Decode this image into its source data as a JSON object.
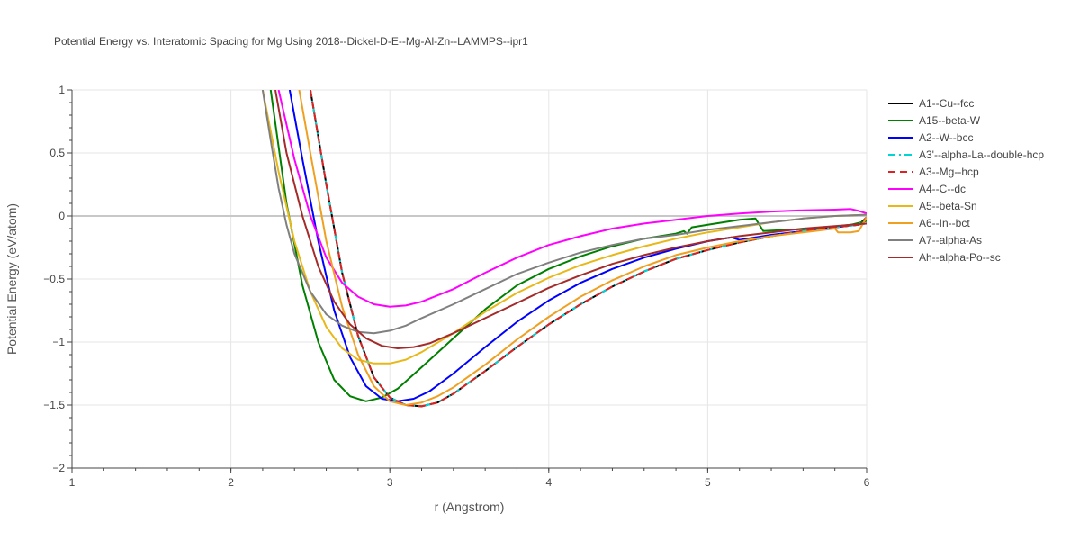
{
  "chart_data": {
    "type": "line",
    "title": "Potential Energy vs. Interatomic Spacing for Mg Using 2018--Dickel-D-E--Mg-Al-Zn--LAMMPS--ipr1",
    "xlabel": "r (Angstrom)",
    "ylabel": "Potential Energy (eV/atom)",
    "xlim": [
      1,
      6
    ],
    "ylim": [
      -2,
      1
    ],
    "xticks": [
      "1",
      "2",
      "3",
      "4",
      "5",
      "6"
    ],
    "yticks": [
      "1",
      "0.5",
      "0",
      "−0.5",
      "−1",
      "−1.5",
      "−2"
    ],
    "ytick_values": [
      1,
      0.5,
      0,
      -0.5,
      -1,
      -1.5,
      -2
    ],
    "grid": true,
    "legend_position": "right",
    "series": [
      {
        "name": "A1--Cu--fcc",
        "color": "#000000",
        "dash": "solid",
        "x": [
          2.5,
          2.6,
          2.7,
          2.8,
          2.9,
          3.0,
          3.1,
          3.2,
          3.3,
          3.4,
          3.6,
          3.8,
          4.0,
          4.2,
          4.4,
          4.6,
          4.8,
          5.0,
          5.2,
          5.4,
          5.6,
          5.8,
          5.95,
          6.0
        ],
        "y": [
          1.0,
          0.25,
          -0.45,
          -0.95,
          -1.28,
          -1.44,
          -1.5,
          -1.51,
          -1.48,
          -1.41,
          -1.23,
          -1.04,
          -0.86,
          -0.7,
          -0.56,
          -0.44,
          -0.34,
          -0.27,
          -0.21,
          -0.16,
          -0.12,
          -0.09,
          -0.07,
          -0.01
        ]
      },
      {
        "name": "A15--beta-W",
        "color": "#008000",
        "dash": "solid",
        "x": [
          2.25,
          2.35,
          2.45,
          2.55,
          2.65,
          2.75,
          2.85,
          2.95,
          3.05,
          3.2,
          3.4,
          3.6,
          3.8,
          4.0,
          4.2,
          4.4,
          4.6,
          4.8,
          4.85,
          4.87,
          4.9,
          5.0,
          5.2,
          5.3,
          5.35,
          5.5,
          5.7,
          5.9,
          6.0
        ],
        "y": [
          1.0,
          0.1,
          -0.55,
          -1.0,
          -1.3,
          -1.43,
          -1.47,
          -1.44,
          -1.37,
          -1.2,
          -0.97,
          -0.74,
          -0.55,
          -0.42,
          -0.32,
          -0.24,
          -0.18,
          -0.14,
          -0.12,
          -0.14,
          -0.09,
          -0.07,
          -0.03,
          -0.02,
          -0.12,
          -0.11,
          -0.1,
          -0.07,
          -0.04
        ]
      },
      {
        "name": "A2--W--bcc",
        "color": "#0000ff",
        "dash": "solid",
        "x": [
          2.37,
          2.45,
          2.55,
          2.65,
          2.75,
          2.85,
          2.95,
          3.05,
          3.15,
          3.25,
          3.4,
          3.6,
          3.8,
          4.0,
          4.2,
          4.4,
          4.6,
          4.8,
          5.0,
          5.15,
          5.2,
          5.4,
          5.6,
          5.8,
          6.0
        ],
        "y": [
          1.0,
          0.45,
          -0.2,
          -0.75,
          -1.12,
          -1.35,
          -1.45,
          -1.47,
          -1.45,
          -1.39,
          -1.25,
          -1.04,
          -0.84,
          -0.67,
          -0.53,
          -0.42,
          -0.33,
          -0.26,
          -0.2,
          -0.17,
          -0.19,
          -0.15,
          -0.12,
          -0.09,
          -0.06
        ]
      },
      {
        "name": "A3'--alpha-La--double-hcp",
        "color": "#00d5d5",
        "dash": "dashdot",
        "x": [
          2.5,
          2.6,
          2.7,
          2.8,
          2.9,
          3.0,
          3.1,
          3.2,
          3.3,
          3.4,
          3.6,
          3.8,
          4.0,
          4.2,
          4.4,
          4.6,
          4.8,
          5.0,
          5.2,
          5.4,
          5.6,
          5.8,
          5.95,
          6.0
        ],
        "y": [
          1.0,
          0.25,
          -0.45,
          -0.95,
          -1.28,
          -1.44,
          -1.5,
          -1.51,
          -1.48,
          -1.41,
          -1.23,
          -1.04,
          -0.86,
          -0.7,
          -0.56,
          -0.44,
          -0.34,
          -0.27,
          -0.21,
          -0.16,
          -0.12,
          -0.09,
          -0.07,
          -0.01
        ]
      },
      {
        "name": "A3--Mg--hcp",
        "color": "#dd2222",
        "dash": "dash",
        "x": [
          2.5,
          2.6,
          2.7,
          2.8,
          2.9,
          3.0,
          3.1,
          3.2,
          3.3,
          3.4,
          3.6,
          3.8,
          4.0,
          4.2,
          4.4,
          4.6,
          4.8,
          5.0,
          5.2,
          5.4,
          5.6,
          5.8,
          5.95,
          6.0
        ],
        "y": [
          1.0,
          0.25,
          -0.45,
          -0.95,
          -1.28,
          -1.44,
          -1.5,
          -1.51,
          -1.48,
          -1.41,
          -1.23,
          -1.04,
          -0.86,
          -0.7,
          -0.56,
          -0.44,
          -0.34,
          -0.27,
          -0.21,
          -0.16,
          -0.12,
          -0.09,
          -0.07,
          -0.01
        ]
      },
      {
        "name": "A4--C--dc",
        "color": "#ff00ff",
        "dash": "solid",
        "x": [
          2.3,
          2.4,
          2.5,
          2.6,
          2.7,
          2.8,
          2.9,
          3.0,
          3.1,
          3.2,
          3.4,
          3.6,
          3.8,
          4.0,
          4.2,
          4.4,
          4.6,
          4.8,
          5.0,
          5.2,
          5.4,
          5.6,
          5.8,
          5.9,
          5.95,
          6.0
        ],
        "y": [
          1.0,
          0.45,
          0.0,
          -0.33,
          -0.53,
          -0.64,
          -0.7,
          -0.72,
          -0.71,
          -0.68,
          -0.58,
          -0.45,
          -0.33,
          -0.23,
          -0.16,
          -0.1,
          -0.06,
          -0.03,
          0.0,
          0.02,
          0.035,
          0.045,
          0.05,
          0.055,
          0.04,
          0.02
        ]
      },
      {
        "name": "A5--beta-Sn",
        "color": "#e8b818",
        "dash": "solid",
        "x": [
          2.2,
          2.3,
          2.4,
          2.5,
          2.6,
          2.7,
          2.8,
          2.9,
          3.0,
          3.1,
          3.2,
          3.4,
          3.6,
          3.8,
          4.0,
          4.2,
          4.4,
          4.6,
          4.8,
          5.0,
          5.2,
          5.4,
          5.6,
          5.8,
          6.0
        ],
        "y": [
          1.0,
          0.35,
          -0.2,
          -0.6,
          -0.88,
          -1.05,
          -1.14,
          -1.17,
          -1.17,
          -1.14,
          -1.08,
          -0.93,
          -0.76,
          -0.61,
          -0.49,
          -0.39,
          -0.31,
          -0.24,
          -0.18,
          -0.13,
          -0.09,
          -0.05,
          -0.02,
          0.0,
          0.01
        ]
      },
      {
        "name": "A6--In--bct",
        "color": "#f0a020",
        "dash": "solid",
        "x": [
          2.43,
          2.5,
          2.6,
          2.7,
          2.8,
          2.9,
          3.0,
          3.1,
          3.2,
          3.3,
          3.4,
          3.6,
          3.8,
          4.0,
          4.2,
          4.4,
          4.6,
          4.8,
          5.0,
          5.2,
          5.4,
          5.6,
          5.8,
          5.82,
          5.9,
          5.95,
          6.0
        ],
        "y": [
          1.0,
          0.5,
          -0.2,
          -0.72,
          -1.1,
          -1.35,
          -1.47,
          -1.5,
          -1.48,
          -1.43,
          -1.36,
          -1.18,
          -0.98,
          -0.8,
          -0.64,
          -0.51,
          -0.4,
          -0.31,
          -0.25,
          -0.2,
          -0.16,
          -0.13,
          -0.1,
          -0.13,
          -0.13,
          -0.12,
          -0.01
        ]
      },
      {
        "name": "A7--alpha-As",
        "color": "#808080",
        "dash": "solid",
        "x": [
          2.2,
          2.25,
          2.3,
          2.35,
          2.4,
          2.5,
          2.6,
          2.7,
          2.8,
          2.9,
          3.0,
          3.1,
          3.2,
          3.4,
          3.6,
          3.8,
          4.0,
          4.2,
          4.4,
          4.6,
          4.8,
          5.0,
          5.2,
          5.4,
          5.6,
          5.8,
          6.0
        ],
        "y": [
          1.0,
          0.6,
          0.22,
          -0.07,
          -0.3,
          -0.6,
          -0.78,
          -0.87,
          -0.92,
          -0.93,
          -0.91,
          -0.87,
          -0.81,
          -0.7,
          -0.58,
          -0.46,
          -0.37,
          -0.29,
          -0.23,
          -0.18,
          -0.15,
          -0.11,
          -0.08,
          -0.05,
          -0.02,
          0.0,
          0.01
        ]
      },
      {
        "name": "Ah--alpha-Po--sc",
        "color": "#a52a2a",
        "dash": "solid",
        "x": [
          2.28,
          2.35,
          2.45,
          2.55,
          2.65,
          2.75,
          2.85,
          2.95,
          3.05,
          3.15,
          3.25,
          3.4,
          3.6,
          3.8,
          4.0,
          4.2,
          4.4,
          4.6,
          4.8,
          5.0,
          5.2,
          5.4,
          5.6,
          5.8,
          6.0
        ],
        "y": [
          1.0,
          0.5,
          0.0,
          -0.4,
          -0.68,
          -0.86,
          -0.97,
          -1.03,
          -1.05,
          -1.04,
          -1.01,
          -0.93,
          -0.81,
          -0.69,
          -0.57,
          -0.47,
          -0.38,
          -0.31,
          -0.25,
          -0.2,
          -0.16,
          -0.13,
          -0.1,
          -0.08,
          -0.06
        ]
      }
    ]
  }
}
